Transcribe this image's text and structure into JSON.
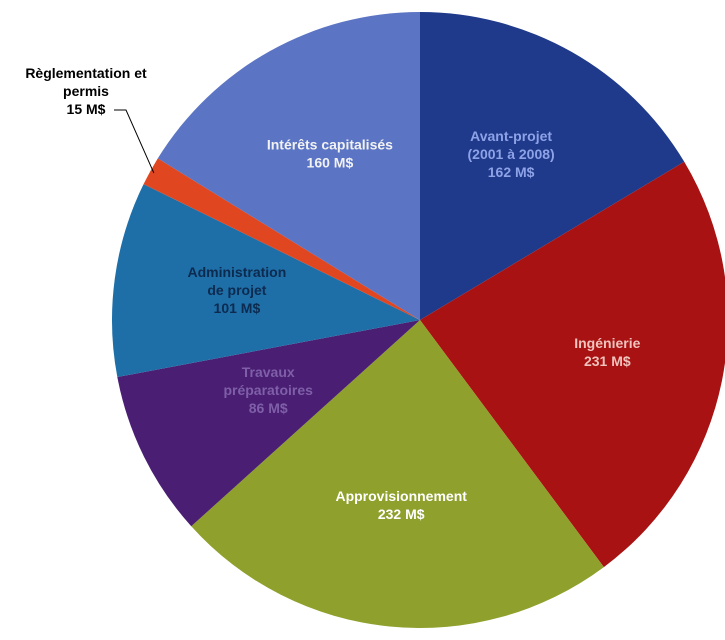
{
  "chart_data": {
    "type": "pie",
    "unit": "M$",
    "slices": [
      {
        "label_lines": [
          "Avant-projet",
          "(2001 à 2008)"
        ],
        "value_text": "162 M$",
        "value": 162,
        "color": "#1f3a8a",
        "label_color": "#8ea2e8"
      },
      {
        "label_lines": [
          "Ingénierie"
        ],
        "value_text": "231 M$",
        "value": 231,
        "color": "#a81212",
        "label_color": "#f0c3bd"
      },
      {
        "label_lines": [
          "Approvisionnement"
        ],
        "value_text": "232 M$",
        "value": 232,
        "color": "#8fa02c",
        "label_color": "#ffffff"
      },
      {
        "label_lines": [
          "Travaux",
          "préparatoires"
        ],
        "value_text": "86 M$",
        "value": 86,
        "color": "#4a1f73",
        "label_color": "#7e5fa8"
      },
      {
        "label_lines": [
          "Administration",
          "de projet"
        ],
        "value_text": "101 M$",
        "value": 101,
        "color": "#1e6fa8",
        "label_color": "#0d2a4f"
      },
      {
        "label_lines": [
          "Règlementation et",
          "permis"
        ],
        "value_text": "15 M$",
        "value": 15,
        "color": "#e0461f",
        "label_color": "#000000",
        "outside": true
      },
      {
        "label_lines": [
          "Intérêts capitalisés"
        ],
        "value_text": "160 M$",
        "value": 160,
        "color": "#5b74c4",
        "label_color": "#f2f2f2"
      }
    ]
  }
}
